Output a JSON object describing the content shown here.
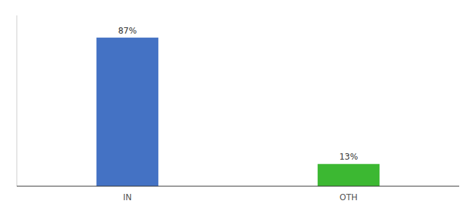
{
  "chart_data": {
    "type": "bar",
    "categories": [
      "IN",
      "OTH"
    ],
    "values": [
      87,
      13
    ],
    "value_labels": [
      "87%",
      "13%"
    ],
    "colors": [
      "#4472c4",
      "#3cb832"
    ],
    "ylim": [
      0,
      100
    ],
    "data_labels": true,
    "tick_labels": "x"
  }
}
